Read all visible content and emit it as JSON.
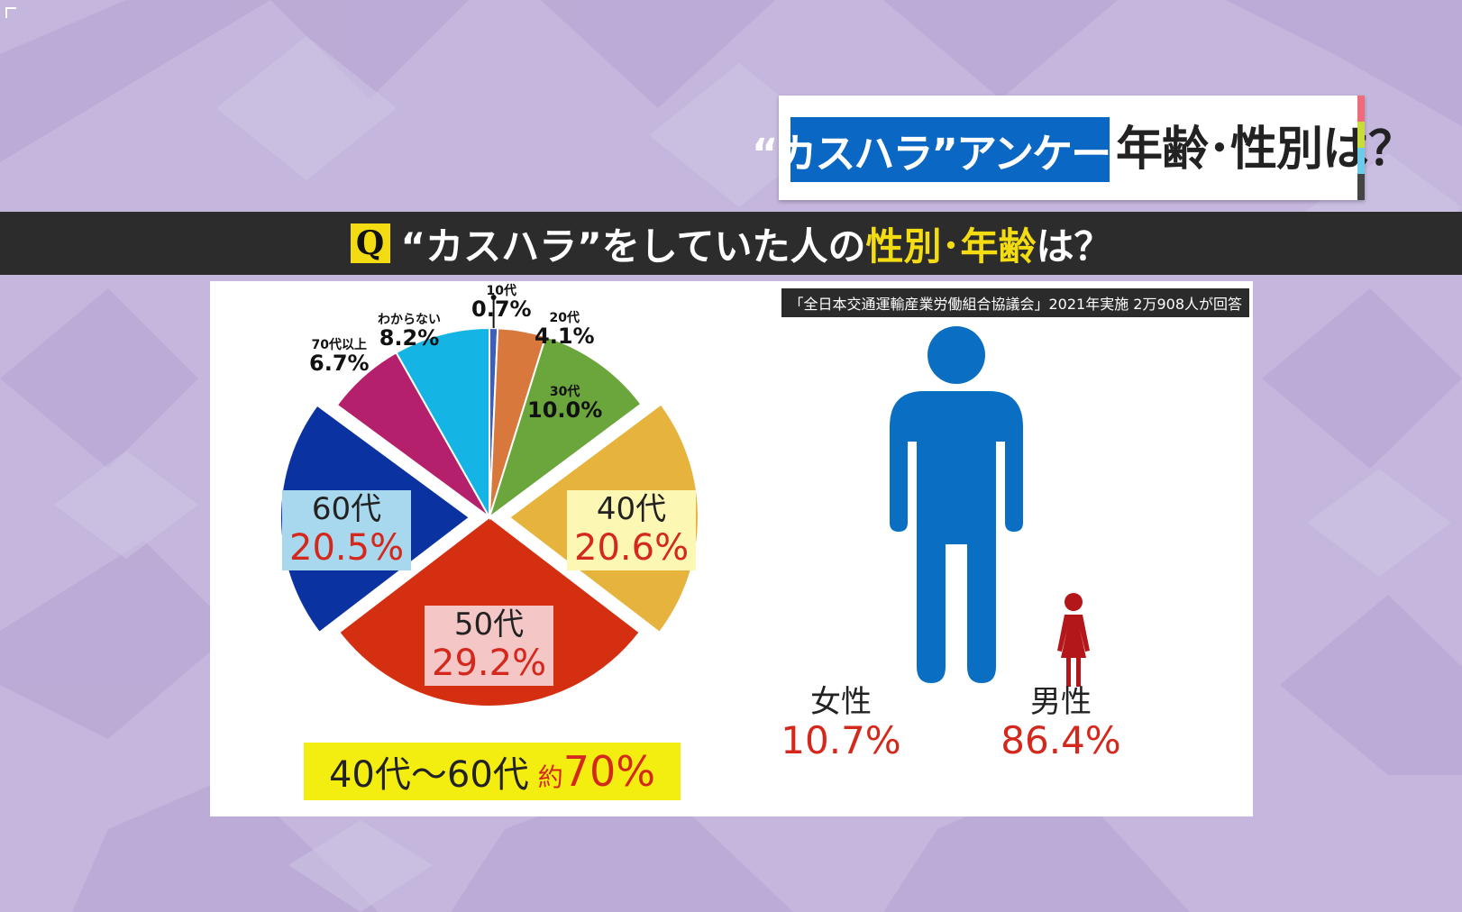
{
  "title": {
    "highlight": "“カスハラ”アンケート",
    "rest": "年齢･性別は？"
  },
  "question": {
    "badge": "Q",
    "text_before": "“カスハラ”をしていた人の",
    "text_highlight": "性別･年齢",
    "text_after": "は？"
  },
  "source": "「全日本交通運輸産業労働組合協議会」2021年実施 2万908人が回答",
  "colors": {
    "background": "#c4b6dc",
    "question_bar": "#2c2c2c",
    "title_blue": "#0a67c4",
    "highlight_yellow": "#f3dc12",
    "value_red": "#d4281c",
    "male_blue": "#0a6fc2",
    "female_red": "#b3171a"
  },
  "chart_data": [
    {
      "type": "pie",
      "categories": [
        "10代",
        "20代",
        "30代",
        "40代",
        "50代",
        "60代",
        "70代以上",
        "わからない"
      ],
      "values": [
        0.7,
        4.1,
        10.0,
        20.6,
        29.2,
        20.5,
        6.7,
        8.2
      ],
      "value_labels": [
        "0.7%",
        "4.1%",
        "10.0%",
        "20.6%",
        "29.2%",
        "20.5%",
        "6.7%",
        "8.2%"
      ],
      "colors": [
        "#3d5fb8",
        "#d8783c",
        "#6aa63c",
        "#e6b43c",
        "#d52f12",
        "#0a32a0",
        "#b5206c",
        "#14b4e4"
      ],
      "exploded": [
        "40代",
        "60代"
      ],
      "summary": {
        "range": "40代〜60代",
        "approx": "約",
        "value": "70%"
      }
    },
    {
      "type": "bar",
      "categories": [
        "女性",
        "男性"
      ],
      "values": [
        10.7,
        86.4
      ],
      "value_labels": [
        "10.7%",
        "86.4%"
      ],
      "colors": [
        "#b3171a",
        "#0a6fc2"
      ],
      "style": "pictogram"
    }
  ]
}
